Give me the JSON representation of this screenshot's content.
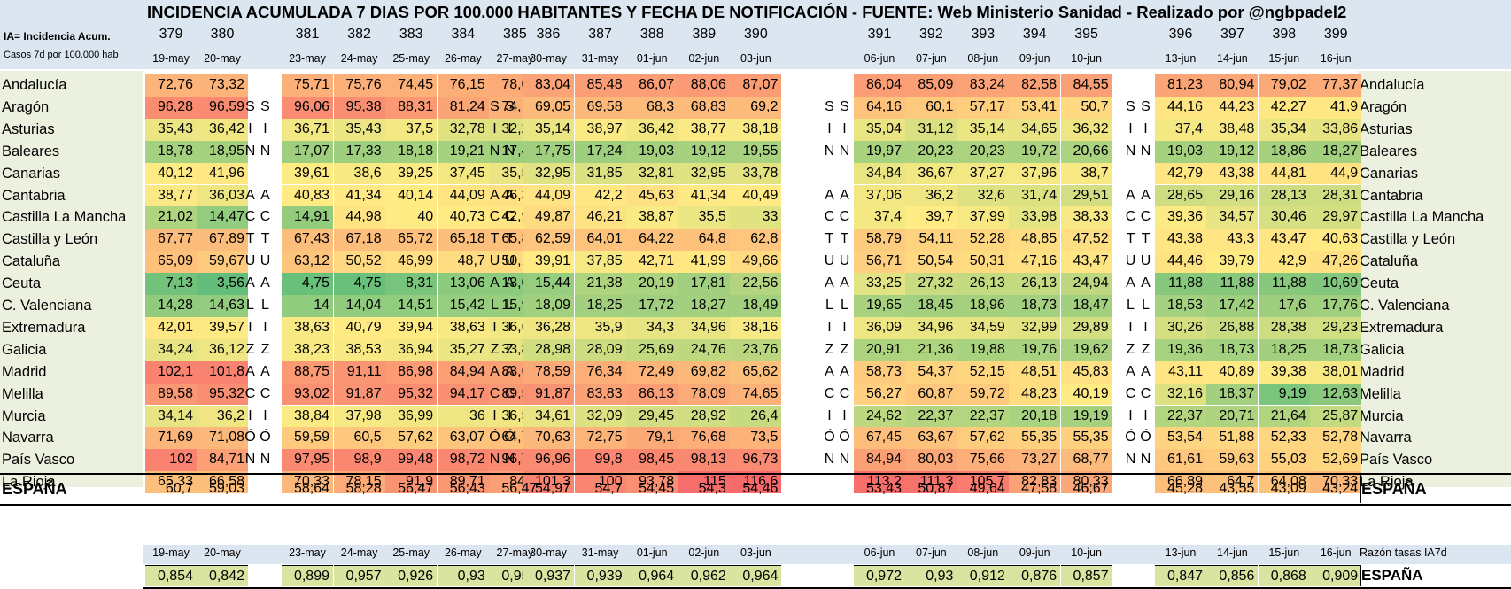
{
  "title": "INCIDENCIA ACUMULADA 7 DIAS POR 100.000 HABITANTES Y FECHA DE NOTIFICACIÓN - FUENTE: Web Ministerio Sanidad - Realizado por @ngbpadel2",
  "legend": {
    "line1": "IA= Incidencia Acum.",
    "line2": "Casos 7d  por 100.000 hab"
  },
  "weeks": [
    {
      "nums": [
        "379",
        "380"
      ],
      "dates": [
        "19-may",
        "20-may"
      ]
    },
    {
      "nums": [
        "381",
        "382",
        "383",
        "384",
        "385"
      ],
      "dates": [
        "23-may",
        "24-may",
        "25-may",
        "26-may",
        "27-may"
      ]
    },
    {
      "nums": [
        "386",
        "387",
        "388",
        "389",
        "390"
      ],
      "dates": [
        "30-may",
        "31-may",
        "01-jun",
        "02-jun",
        "03-jun"
      ]
    },
    {
      "nums": [
        "391",
        "392",
        "393",
        "394",
        "395"
      ],
      "dates": [
        "06-jun",
        "07-jun",
        "08-jun",
        "09-jun",
        "10-jun"
      ]
    },
    {
      "nums": [
        "396",
        "397",
        "398",
        "399"
      ],
      "dates": [
        "13-jun",
        "14-jun",
        "15-jun",
        "16-jun"
      ]
    }
  ],
  "regions": [
    {
      "name": "Andalucía",
      "weekend": [
        "",
        ""
      ],
      "weeks": [
        [
          "72,76",
          "73,32"
        ],
        [
          "75,71",
          "75,76",
          "74,45",
          "76,15",
          "78,04"
        ],
        [
          "83,04",
          "85,48",
          "86,07",
          "88,06",
          "87,07"
        ],
        [
          "86,04",
          "85,09",
          "83,24",
          "82,58",
          "84,55"
        ],
        [
          "81,23",
          "80,94",
          "79,02",
          "77,37"
        ]
      ]
    },
    {
      "name": "Aragón",
      "weekend": [
        "S",
        "S"
      ],
      "weeks": [
        [
          "96,28",
          "96,59"
        ],
        [
          "96,06",
          "95,38",
          "88,31",
          "81,24",
          "74,17"
        ],
        [
          "69,05",
          "69,58",
          "68,3",
          "68,83",
          "69,2"
        ],
        [
          "64,16",
          "60,1",
          "57,17",
          "53,41",
          "50,7"
        ],
        [
          "44,16",
          "44,23",
          "42,27",
          "41,9"
        ]
      ]
    },
    {
      "name": "Asturias",
      "weekend": [
        "I",
        "I"
      ],
      "weeks": [
        [
          "35,43",
          "36,42"
        ],
        [
          "36,71",
          "35,43",
          "37,5",
          "32,78",
          "32,29"
        ],
        [
          "35,14",
          "38,97",
          "36,42",
          "38,77",
          "38,18"
        ],
        [
          "35,04",
          "31,12",
          "35,14",
          "34,65",
          "36,32"
        ],
        [
          "37,4",
          "38,48",
          "35,34",
          "33,86"
        ]
      ]
    },
    {
      "name": "Baleares",
      "weekend": [
        "N",
        "N"
      ],
      "weeks": [
        [
          "18,78",
          "18,95"
        ],
        [
          "17,07",
          "17,33",
          "18,18",
          "19,21",
          "17,41"
        ],
        [
          "17,75",
          "17,24",
          "19,03",
          "19,12",
          "19,55"
        ],
        [
          "19,97",
          "20,23",
          "20,23",
          "19,72",
          "20,66"
        ],
        [
          "19,03",
          "19,12",
          "18,86",
          "18,27"
        ]
      ]
    },
    {
      "name": "Canarias",
      "weekend": [
        "",
        ""
      ],
      "weeks": [
        [
          "40,12",
          "41,96"
        ],
        [
          "39,61",
          "38,6",
          "39,25",
          "37,45",
          "35,52"
        ],
        [
          "32,95",
          "31,85",
          "32,81",
          "32,95",
          "33,78"
        ],
        [
          "34,84",
          "36,67",
          "37,27",
          "37,96",
          "38,7"
        ],
        [
          "42,79",
          "43,38",
          "44,81",
          "44,9"
        ]
      ]
    },
    {
      "name": "Cantabria",
      "weekend": [
        "A",
        "A"
      ],
      "weeks": [
        [
          "38,77",
          "36,03"
        ],
        [
          "40,83",
          "41,34",
          "40,14",
          "44,09",
          "46,32"
        ],
        [
          "44,09",
          "42,2",
          "45,63",
          "41,34",
          "40,49"
        ],
        [
          "37,06",
          "36,2",
          "32,6",
          "31,74",
          "29,51"
        ],
        [
          "28,65",
          "29,16",
          "28,13",
          "28,31"
        ]
      ]
    },
    {
      "name": "Castilla La Mancha",
      "weekend": [
        "C",
        "C"
      ],
      "weeks": [
        [
          "21,02",
          "14,47"
        ],
        [
          "14,91",
          "44,98",
          "40",
          "40,73",
          "42,98"
        ],
        [
          "49,87",
          "46,21",
          "38,87",
          "35,5",
          "33"
        ],
        [
          "37,4",
          "39,7",
          "37,99",
          "33,98",
          "38,33"
        ],
        [
          "39,36",
          "34,57",
          "30,46",
          "29,97"
        ]
      ]
    },
    {
      "name": "Castilla y León",
      "weekend": [
        "T",
        "T"
      ],
      "weeks": [
        [
          "67,77",
          "67,89"
        ],
        [
          "67,43",
          "67,18",
          "65,72",
          "65,18",
          "65,85"
        ],
        [
          "62,59",
          "64,01",
          "64,22",
          "64,8",
          "62,8"
        ],
        [
          "58,79",
          "54,11",
          "52,28",
          "48,85",
          "47,52"
        ],
        [
          "43,38",
          "43,3",
          "43,47",
          "40,63"
        ]
      ]
    },
    {
      "name": "Cataluña",
      "weekend": [
        "U",
        "U"
      ],
      "weeks": [
        [
          "65,09",
          "59,67"
        ],
        [
          "63,12",
          "50,52",
          "46,99",
          "48,7",
          "50,15"
        ],
        [
          "39,91",
          "37,85",
          "42,71",
          "41,99",
          "49,66"
        ],
        [
          "56,71",
          "50,54",
          "50,31",
          "47,16",
          "43,47"
        ],
        [
          "44,46",
          "39,79",
          "42,9",
          "47,26"
        ]
      ]
    },
    {
      "name": "Ceuta",
      "weekend": [
        "A",
        "A"
      ],
      "weeks": [
        [
          "7,13",
          "3,56"
        ],
        [
          "4,75",
          "4,75",
          "8,31",
          "13,06",
          "13,06"
        ],
        [
          "15,44",
          "21,38",
          "20,19",
          "17,81",
          "22,56"
        ],
        [
          "33,25",
          "27,32",
          "26,13",
          "26,13",
          "24,94"
        ],
        [
          "11,88",
          "11,88",
          "11,88",
          "10,69"
        ]
      ]
    },
    {
      "name": "C. Valenciana",
      "weekend": [
        "L",
        "L"
      ],
      "weeks": [
        [
          "14,28",
          "14,63"
        ],
        [
          "14",
          "14,04",
          "14,51",
          "15,42",
          "15,96"
        ],
        [
          "18,09",
          "18,25",
          "17,72",
          "18,27",
          "18,49"
        ],
        [
          "19,65",
          "18,45",
          "18,96",
          "18,73",
          "18,47"
        ],
        [
          "18,53",
          "17,42",
          "17,6",
          "17,76"
        ]
      ]
    },
    {
      "name": "Extremadura",
      "weekend": [
        "I",
        "I"
      ],
      "weeks": [
        [
          "42,01",
          "39,57"
        ],
        [
          "38,63",
          "40,79",
          "39,94",
          "38,63",
          "36,65"
        ],
        [
          "36,28",
          "35,9",
          "34,3",
          "34,96",
          "38,16"
        ],
        [
          "36,09",
          "34,96",
          "34,59",
          "32,99",
          "29,89"
        ],
        [
          "30,26",
          "26,88",
          "28,38",
          "29,23"
        ]
      ]
    },
    {
      "name": "Galicia",
      "weekend": [
        "Z",
        "Z"
      ],
      "weeks": [
        [
          "34,24",
          "36,12"
        ],
        [
          "38,23",
          "38,53",
          "36,94",
          "35,27",
          "33,83"
        ],
        [
          "28,98",
          "28,09",
          "25,69",
          "24,76",
          "23,76"
        ],
        [
          "20,91",
          "21,36",
          "19,88",
          "19,76",
          "19,62"
        ],
        [
          "19,36",
          "18,73",
          "18,25",
          "18,73"
        ]
      ]
    },
    {
      "name": "Madrid",
      "weekend": [
        "A",
        "A"
      ],
      "weeks": [
        [
          "102,1",
          "101,8"
        ],
        [
          "88,75",
          "91,11",
          "86,98",
          "84,94",
          "83,63"
        ],
        [
          "78,59",
          "76,34",
          "72,49",
          "69,82",
          "65,62"
        ],
        [
          "58,73",
          "54,37",
          "52,15",
          "48,51",
          "45,83"
        ],
        [
          "43,11",
          "40,89",
          "39,38",
          "38,01"
        ]
      ]
    },
    {
      "name": "Melilla",
      "weekend": [
        "C",
        "C"
      ],
      "weeks": [
        [
          "89,58",
          "95,32"
        ],
        [
          "93,02",
          "91,87",
          "95,32",
          "94,17",
          "89,58"
        ],
        [
          "91,87",
          "83,83",
          "86,13",
          "78,09",
          "74,65"
        ],
        [
          "56,27",
          "60,87",
          "59,72",
          "48,23",
          "40,19"
        ],
        [
          "32,16",
          "18,37",
          "9,19",
          "12,63"
        ]
      ]
    },
    {
      "name": "Murcia",
      "weekend": [
        "I",
        "I"
      ],
      "weeks": [
        [
          "34,14",
          "36,2"
        ],
        [
          "38,84",
          "37,98",
          "36,99",
          "36",
          "36,59"
        ],
        [
          "34,61",
          "32,09",
          "29,45",
          "28,92",
          "26,4"
        ],
        [
          "24,62",
          "22,37",
          "22,37",
          "20,18",
          "19,19"
        ],
        [
          "22,37",
          "20,71",
          "21,64",
          "25,87"
        ]
      ]
    },
    {
      "name": "Navarra",
      "weekend": [
        "Ó",
        "Ó"
      ],
      "weeks": [
        [
          "71,69",
          "71,08"
        ],
        [
          "59,59",
          "60,5",
          "57,62",
          "63,07",
          "64,73"
        ],
        [
          "70,63",
          "72,75",
          "79,1",
          "76,68",
          "73,5"
        ],
        [
          "67,45",
          "63,67",
          "57,62",
          "55,35",
          "55,35"
        ],
        [
          "53,54",
          "51,88",
          "52,33",
          "52,78"
        ]
      ]
    },
    {
      "name": "País Vasco",
      "weekend": [
        "N",
        "N"
      ],
      "weeks": [
        [
          "102",
          "84,71"
        ],
        [
          "97,95",
          "98,9",
          "99,48",
          "98,72",
          "96,73"
        ],
        [
          "96,96",
          "99,8",
          "98,45",
          "98,13",
          "96,73"
        ],
        [
          "84,94",
          "80,03",
          "75,66",
          "73,27",
          "68,77"
        ],
        [
          "61,61",
          "59,63",
          "55,03",
          "52,69"
        ]
      ]
    },
    {
      "name": "La Rioja",
      "weekend": [
        "",
        ""
      ],
      "weeks": [
        [
          "65,33",
          "66,58"
        ],
        [
          "70,33",
          "78,15",
          "91,9",
          "89,71",
          "84,4"
        ],
        [
          "101,3",
          "100",
          "93,78",
          "115",
          "116,6"
        ],
        [
          "113,2",
          "111,3",
          "105,7",
          "82,83",
          "80,33"
        ],
        [
          "66,89",
          "64,7",
          "64,08",
          "70,33"
        ]
      ]
    }
  ],
  "spain": {
    "name": "ESPAÑA",
    "weeks": [
      [
        "60,7",
        "59,03"
      ],
      [
        "58,64",
        "58,28",
        "56,47",
        "56,43",
        "56,47"
      ],
      [
        "54,97",
        "54,7",
        "54,45",
        "54,3",
        "54,46"
      ],
      [
        "53,43",
        "50,87",
        "49,64",
        "47,58",
        "46,67"
      ],
      [
        "45,28",
        "43,55",
        "43,09",
        "43,24"
      ]
    ]
  },
  "ratio": {
    "label": "Razón tasas IA7d",
    "name": "ESPAÑA",
    "weeks": [
      [
        "0,854",
        "0,842"
      ],
      [
        "0,899",
        "0,957",
        "0,926",
        "0,93",
        "0,957"
      ],
      [
        "0,937",
        "0,939",
        "0,964",
        "0,962",
        "0,964"
      ],
      [
        "0,972",
        "0,93",
        "0,912",
        "0,876",
        "0,857"
      ],
      [
        "0,847",
        "0,856",
        "0,868",
        "0,909"
      ]
    ]
  },
  "colors": {
    "header_bg": "#dce6f1",
    "row_bg": "#ebf1de",
    "scale_low": "#63be7b",
    "scale_mid": "#ffeb84",
    "scale_high": "#f8696b",
    "ratio_bg": "#d8e4a0"
  }
}
